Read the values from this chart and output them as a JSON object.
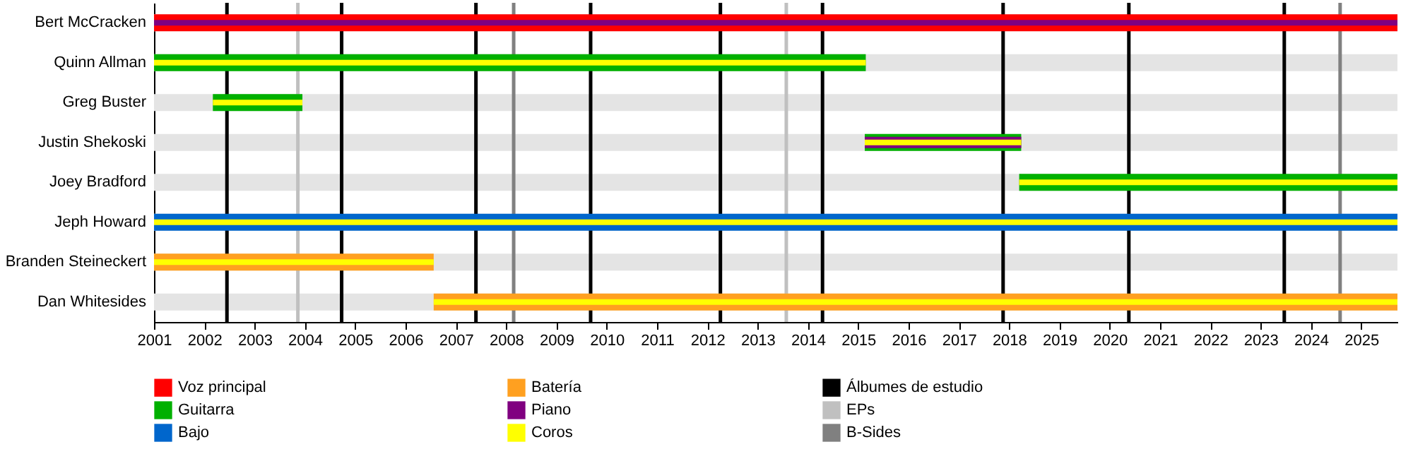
{
  "chart_data": {
    "type": "bar",
    "orientation": "horizontal",
    "categories": [
      "Bert McCracken",
      "Quinn Allman",
      "Greg Buster",
      "Justin Shekoski",
      "Joey Bradford",
      "Jeph Howard",
      "Branden Steineckert",
      "Dan Whitesides"
    ],
    "series": [
      {
        "name": "Voz principal",
        "color": "#ff0000",
        "base": [
          2001,
          null,
          null,
          null,
          null,
          null,
          null,
          null
        ],
        "values": [
          24.72,
          null,
          null,
          null,
          null,
          null,
          null,
          null
        ]
      },
      {
        "name": "Guitarra",
        "color": "#00b000",
        "base": [
          null,
          2001,
          2002.17,
          2015.13,
          2018.2,
          null,
          null,
          null
        ],
        "values": [
          null,
          14.15,
          1.78,
          3.11,
          7.52,
          null,
          null,
          null
        ]
      },
      {
        "name": "Bajo",
        "color": "#0066cc",
        "base": [
          null,
          null,
          null,
          null,
          null,
          2001,
          null,
          null
        ],
        "values": [
          null,
          null,
          null,
          null,
          null,
          24.72,
          null,
          null
        ]
      },
      {
        "name": "Batería",
        "color": "#ffa020",
        "base": [
          null,
          null,
          null,
          null,
          null,
          null,
          2001,
          2006.56
        ],
        "values": [
          null,
          null,
          null,
          null,
          null,
          null,
          5.56,
          19.16
        ]
      },
      {
        "name": "Piano",
        "color": "#800080",
        "base": [
          2001,
          null,
          null,
          2015.13,
          null,
          null,
          null,
          null
        ],
        "values": [
          24.72,
          null,
          null,
          3.11,
          null,
          null,
          null,
          null
        ]
      },
      {
        "name": "Coros",
        "color": "#ffff00",
        "base": [
          null,
          2001,
          2002.17,
          2015.13,
          2018.2,
          2001,
          2001,
          2006.56
        ],
        "values": [
          null,
          14.15,
          1.78,
          3.11,
          7.52,
          24.72,
          5.56,
          19.16
        ]
      }
    ],
    "xlim": [
      2001,
      2025.72
    ],
    "xticks": [
      2001,
      2002,
      2003,
      2004,
      2005,
      2006,
      2007,
      2008,
      2009,
      2010,
      2011,
      2012,
      2013,
      2014,
      2015,
      2016,
      2017,
      2018,
      2019,
      2020,
      2021,
      2022,
      2023,
      2024,
      2025
    ],
    "ref_lines": [
      {
        "axis": "x",
        "value": 2002.45,
        "label": "Álbumes de estudio",
        "color": "#000000"
      },
      {
        "axis": "x",
        "value": 2004.73,
        "label": null,
        "color": "#000000"
      },
      {
        "axis": "x",
        "value": 2007.4,
        "label": null,
        "color": "#000000"
      },
      {
        "axis": "x",
        "value": 2009.68,
        "label": null,
        "color": "#000000"
      },
      {
        "axis": "x",
        "value": 2012.26,
        "label": null,
        "color": "#000000"
      },
      {
        "axis": "x",
        "value": 2014.29,
        "label": null,
        "color": "#000000"
      },
      {
        "axis": "x",
        "value": 2017.88,
        "label": null,
        "color": "#000000"
      },
      {
        "axis": "x",
        "value": 2020.38,
        "label": null,
        "color": "#000000"
      },
      {
        "axis": "x",
        "value": 2023.47,
        "label": null,
        "color": "#000000"
      },
      {
        "axis": "x",
        "value": 2003.86,
        "label": "EPs",
        "color": "#c0c0c0"
      },
      {
        "axis": "x",
        "value": 2013.57,
        "label": null,
        "color": "#c0c0c0"
      },
      {
        "axis": "x",
        "value": 2008.15,
        "label": "B-Sides",
        "color": "#808080"
      },
      {
        "axis": "x",
        "value": 2024.58,
        "label": null,
        "color": "#808080"
      }
    ],
    "legend": "bottom"
  }
}
